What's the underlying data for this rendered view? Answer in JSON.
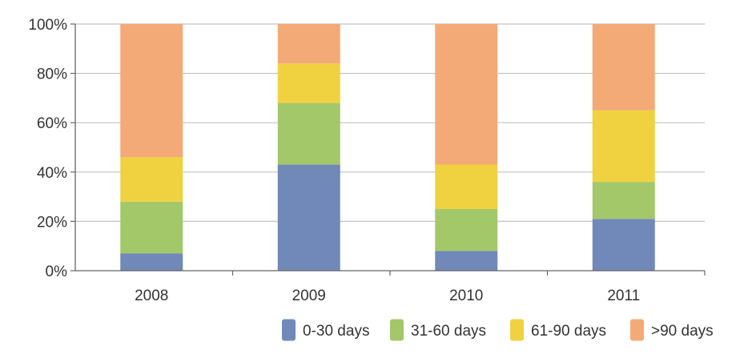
{
  "chart_data": {
    "type": "bar",
    "stacked": true,
    "normalized": true,
    "categories": [
      "2008",
      "2009",
      "2010",
      "2011"
    ],
    "series": [
      {
        "name": "0-30 days",
        "color": "#7189b8",
        "values": [
          7,
          43,
          8,
          21
        ]
      },
      {
        "name": "31-60 days",
        "color": "#a3c86a",
        "values": [
          21,
          25,
          17,
          15
        ]
      },
      {
        "name": "61-90 days",
        "color": "#f0d240",
        "values": [
          18,
          16,
          18,
          29
        ]
      },
      {
        "name": ">90 days",
        "color": "#f4aa76",
        "values": [
          54,
          16,
          57,
          35
        ]
      }
    ],
    "ylim": [
      0,
      100
    ],
    "yticks": [
      "0%",
      "20%",
      "40%",
      "60%",
      "80%",
      "100%"
    ],
    "grid": true,
    "legend_position": "bottom-right",
    "title": "",
    "xlabel": "",
    "ylabel": ""
  }
}
